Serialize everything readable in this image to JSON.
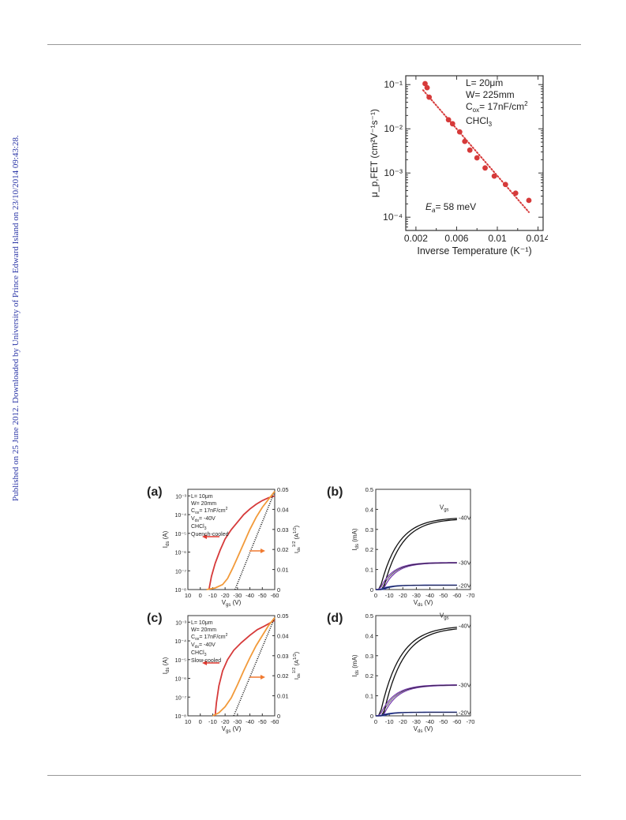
{
  "watermark": "Published on 25 June 2012. Downloaded by University of Prince Edward Island on 23/10/2014 09:43:28.",
  "colors": {
    "red": "#d63a3a",
    "orange": "#f29a3a",
    "black": "#111111",
    "purple": "#7a3fb0",
    "blue": "#2a3fb5",
    "arrow_red": "#e03a30",
    "arrow_orange": "#f07a30",
    "watermark": "#2a35a6"
  },
  "chart_data": [
    {
      "id": "arrhenius",
      "type": "scatter",
      "xlabel": "Inverse Temperature (K⁻¹)",
      "ylabel": "μ_p,FET (cm²V⁻¹s⁻¹)",
      "x_ticks": [
        "0.002",
        "0.006",
        "0.01",
        "0.014"
      ],
      "xlim": [
        0.001,
        0.0145
      ],
      "ylim_log10": [
        -4.3,
        -0.8
      ],
      "y_ticks": [
        "10⁻¹",
        "10⁻²",
        "10⁻³",
        "10⁻⁴"
      ],
      "annotations": [
        "L= 20μm",
        "W= 225mm",
        "C",
        "ox",
        "= 17nF/cm",
        "2",
        "CHCl",
        "3"
      ],
      "ea_label": "E",
      "ea_sub": "a",
      "ea_value": "= 58 meV",
      "points": [
        {
          "x": 0.0029,
          "y": 0.105
        },
        {
          "x": 0.0031,
          "y": 0.085
        },
        {
          "x": 0.0033,
          "y": 0.052
        },
        {
          "x": 0.0052,
          "y": 0.016
        },
        {
          "x": 0.0056,
          "y": 0.013
        },
        {
          "x": 0.0063,
          "y": 0.0085
        },
        {
          "x": 0.0068,
          "y": 0.0052
        },
        {
          "x": 0.0073,
          "y": 0.0033
        },
        {
          "x": 0.008,
          "y": 0.0022
        },
        {
          "x": 0.0088,
          "y": 0.0013
        },
        {
          "x": 0.0097,
          "y": 0.00085
        },
        {
          "x": 0.0108,
          "y": 0.00055
        },
        {
          "x": 0.0118,
          "y": 0.00035
        },
        {
          "x": 0.0131,
          "y": 0.00024
        }
      ],
      "fit": [
        {
          "x": 0.0027,
          "y": 0.075
        },
        {
          "x": 0.0131,
          "y": 0.00013
        }
      ]
    },
    {
      "id": "a",
      "panel_label": "(a)",
      "type": "transfer",
      "xlabel": "V",
      "xlabel_sub": "gs",
      "xlabel_unit": " (V)",
      "ylabel_left": "I",
      "ylabel_left_sub": "ds",
      "ylabel_left_unit": " (A)",
      "ylabel_right": "I",
      "ylabel_right_sub": "ds",
      "ylabel_right_sup": "1/2",
      "ylabel_right_unit": " (A",
      "ylabel_right_unit_sup": "1/2",
      "ylabel_right_unit_end": ")",
      "x_ticks": [
        "10",
        "0",
        "-10",
        "-20",
        "-30",
        "-40",
        "-50",
        "-60"
      ],
      "y_left_ticks": [
        "10⁻³",
        "10⁻⁴",
        "10⁻⁵",
        "10⁻⁶",
        "10⁻⁷",
        "10⁻⁸"
      ],
      "y_right_ticks": [
        "0.05",
        "0.04",
        "0.03",
        "0.02",
        "0.01",
        "0"
      ],
      "legend": [
        "L= 10μm",
        "W= 20mm",
        "C",
        "ox",
        "= 17nF/cm",
        "2",
        "V",
        "ds",
        "= -40V",
        "CHCl",
        "3",
        "Quench-cooled"
      ],
      "log_curve": [
        [
          -7,
          -8
        ],
        [
          -9,
          -7.3
        ],
        [
          -12,
          -6.6
        ],
        [
          -16,
          -5.9
        ],
        [
          -20,
          -5.3
        ],
        [
          -25,
          -4.8
        ],
        [
          -30,
          -4.4
        ],
        [
          -35,
          -4.0
        ],
        [
          -40,
          -3.7
        ],
        [
          -45,
          -3.45
        ],
        [
          -50,
          -3.25
        ],
        [
          -55,
          -3.1
        ],
        [
          -60,
          -3.0
        ]
      ],
      "sqrt_curve": [
        [
          -5,
          0
        ],
        [
          -12,
          0.0008
        ],
        [
          -18,
          0.0025
        ],
        [
          -22,
          0.0055
        ],
        [
          -26,
          0.0105
        ],
        [
          -30,
          0.016
        ],
        [
          -35,
          0.023
        ],
        [
          -40,
          0.03
        ],
        [
          -45,
          0.036
        ],
        [
          -50,
          0.041
        ],
        [
          -55,
          0.045
        ],
        [
          -60,
          0.049
        ]
      ],
      "fit_line": [
        [
          -28,
          0
        ],
        [
          -60,
          0.049
        ]
      ]
    },
    {
      "id": "b",
      "panel_label": "(b)",
      "type": "output",
      "xlabel": "V",
      "xlabel_sub": "ds",
      "xlabel_unit": " (V)",
      "ylabel": "I",
      "ylabel_sub": "ds",
      "ylabel_unit": " (mA)",
      "x_ticks": [
        "0",
        "-10",
        "-20",
        "-30",
        "-40",
        "-50",
        "-60",
        "-70"
      ],
      "y_ticks": [
        "0.5",
        "0.4",
        "0.3",
        "0.2",
        "0.1",
        "0"
      ],
      "vgs_label": "V",
      "vgs_sub": "gs",
      "series": [
        {
          "name": "-40V",
          "sat": 0.36,
          "k": 0.075,
          "color": "black"
        },
        {
          "name": "-30V",
          "sat": 0.135,
          "k": 0.11,
          "color": "purple"
        },
        {
          "name": "-20V",
          "sat": 0.022,
          "k": 0.15,
          "color": "blue"
        }
      ]
    },
    {
      "id": "c",
      "panel_label": "(c)",
      "type": "transfer",
      "xlabel": "V",
      "xlabel_sub": "gs",
      "xlabel_unit": " (V)",
      "ylabel_left": "I",
      "ylabel_left_sub": "ds",
      "ylabel_left_unit": " (A)",
      "ylabel_right": "I",
      "ylabel_right_sub": "ds",
      "ylabel_right_sup": "1/2",
      "ylabel_right_unit": " (A",
      "ylabel_right_unit_sup": "1/2",
      "ylabel_right_unit_end": ")",
      "x_ticks": [
        "10",
        "0",
        "-10",
        "-20",
        "-30",
        "-40",
        "-50",
        "-60"
      ],
      "y_left_ticks": [
        "10⁻³",
        "10⁻⁴",
        "10⁻⁵",
        "10⁻⁶",
        "10⁻⁷",
        "10⁻⁸"
      ],
      "y_right_ticks": [
        "0.05",
        "0.04",
        "0.03",
        "0.02",
        "0.01",
        "0"
      ],
      "legend": [
        "L= 10μm",
        "W= 20mm",
        "C",
        "ox",
        "= 17nF/cm",
        "2",
        "V",
        "ds",
        "= -40V",
        "CHCl",
        "3",
        "Slow-cooled"
      ],
      "log_curve": [
        [
          -12,
          -8
        ],
        [
          -13,
          -7.3
        ],
        [
          -15,
          -6.4
        ],
        [
          -18,
          -5.6
        ],
        [
          -22,
          -5.0
        ],
        [
          -27,
          -4.5
        ],
        [
          -33,
          -4.1
        ],
        [
          -40,
          -3.7
        ],
        [
          -46,
          -3.4
        ],
        [
          -52,
          -3.2
        ],
        [
          -56,
          -3.05
        ],
        [
          -60,
          -2.9
        ]
      ],
      "sqrt_curve": [
        [
          -10,
          0
        ],
        [
          -15,
          0.0015
        ],
        [
          -20,
          0.0045
        ],
        [
          -25,
          0.009
        ],
        [
          -30,
          0.0155
        ],
        [
          -35,
          0.0225
        ],
        [
          -40,
          0.029
        ],
        [
          -45,
          0.035
        ],
        [
          -50,
          0.04
        ],
        [
          -55,
          0.045
        ],
        [
          -60,
          0.049
        ]
      ],
      "fit_line": [
        [
          -27,
          0
        ],
        [
          -60,
          0.049
        ]
      ]
    },
    {
      "id": "d",
      "panel_label": "(d)",
      "type": "output",
      "xlabel": "V",
      "xlabel_sub": "ds",
      "xlabel_unit": " (V)",
      "ylabel": "I",
      "ylabel_sub": "ds",
      "ylabel_unit": " (mA)",
      "x_ticks": [
        "0",
        "-10",
        "-20",
        "-30",
        "-40",
        "-50",
        "-60",
        "-70"
      ],
      "y_ticks": [
        "0.5",
        "0.4",
        "0.3",
        "0.2",
        "0.1",
        "0"
      ],
      "vgs_label": "V",
      "vgs_sub": "gs",
      "series": [
        {
          "name": "-40V",
          "sat": 0.45,
          "k": 0.07,
          "color": "black"
        },
        {
          "name": "-30V",
          "sat": 0.155,
          "k": 0.1,
          "color": "purple"
        },
        {
          "name": "-20V",
          "sat": 0.018,
          "k": 0.15,
          "color": "blue"
        }
      ]
    }
  ]
}
